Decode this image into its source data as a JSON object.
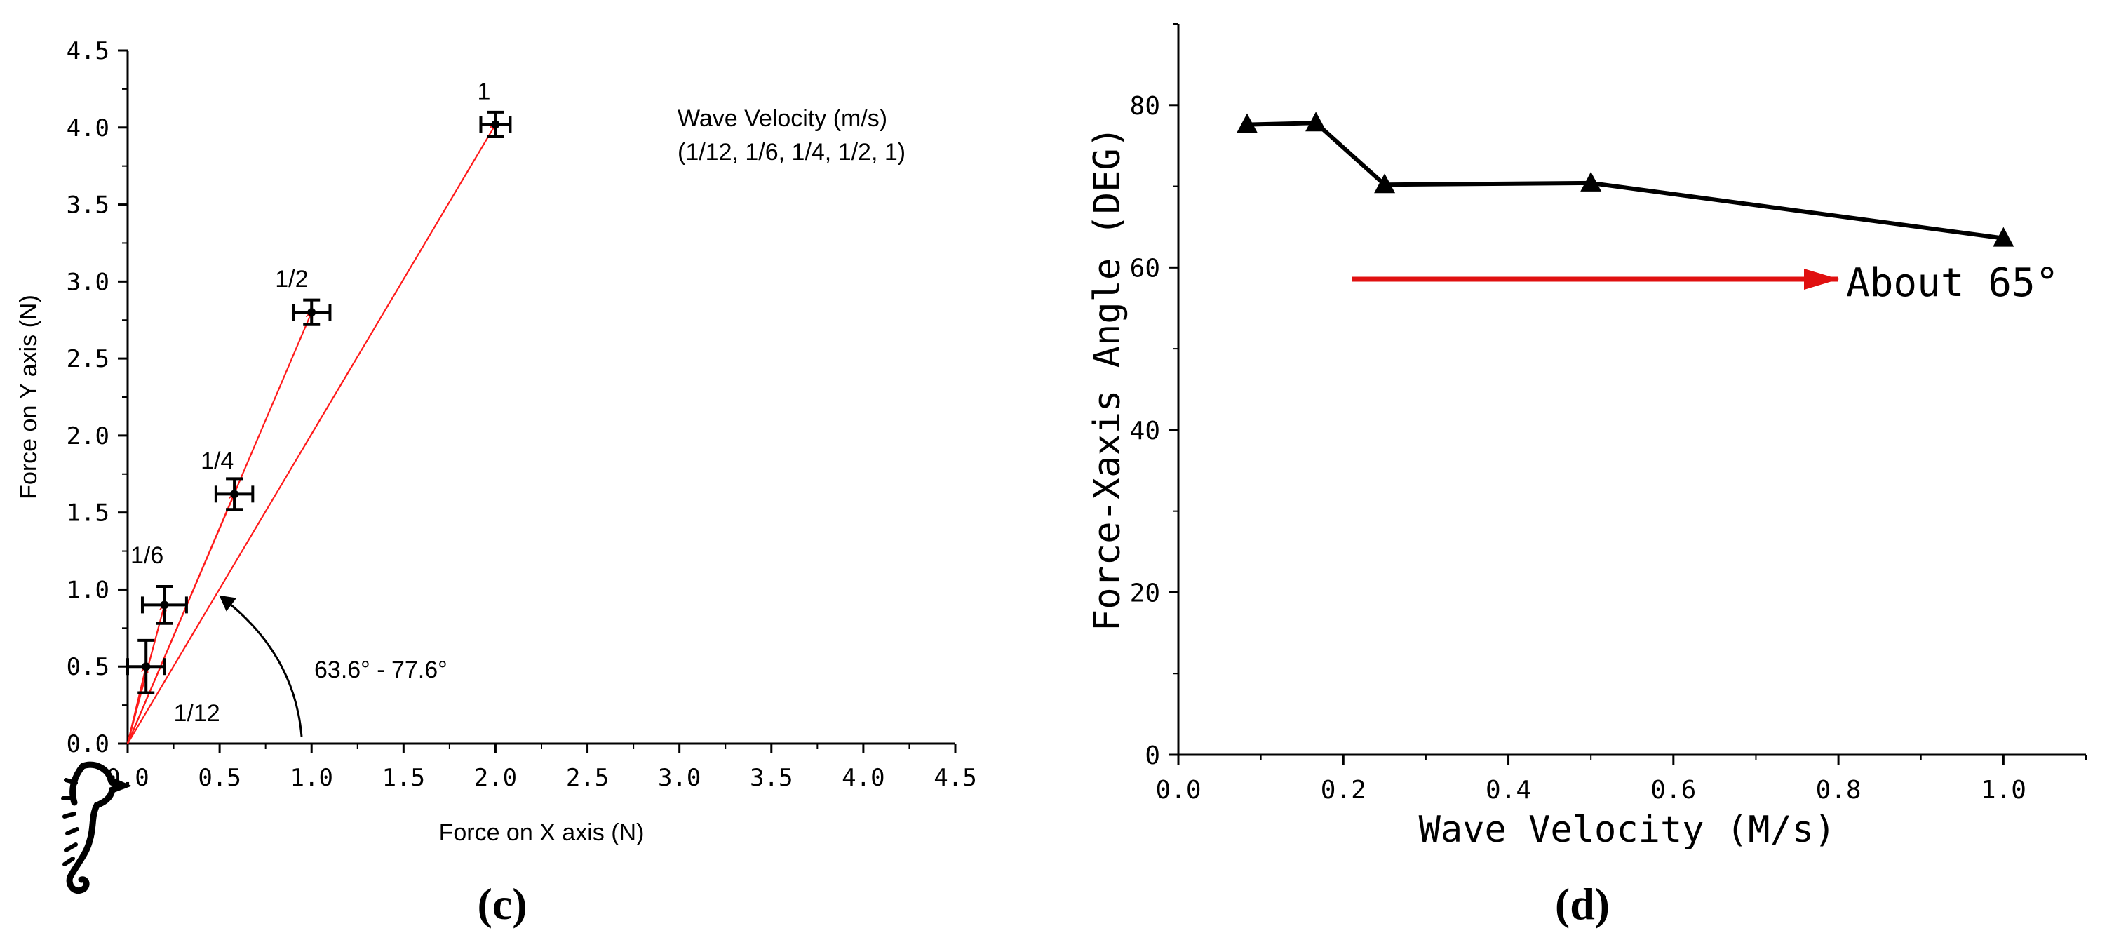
{
  "colors": {
    "vector": "#ff1a1a",
    "arrow": "#e01010",
    "ink": "#000000"
  },
  "chart_data": [
    {
      "panel_label": "(c)",
      "type": "scatter",
      "title": "",
      "xlabel": "Force on X axis (N)",
      "ylabel": "Force on Y axis (N)",
      "xlim": [
        0,
        4.5
      ],
      "ylim": [
        0,
        4.5
      ],
      "xticks": [
        "0.0",
        "0.5",
        "1.0",
        "1.5",
        "2.0",
        "2.5",
        "3.0",
        "3.5",
        "4.0",
        "4.5"
      ],
      "yticks": [
        "0.0",
        "0.5",
        "1.0",
        "1.5",
        "2.0",
        "2.5",
        "3.0",
        "3.5",
        "4.0",
        "4.5"
      ],
      "legend_title": "Wave Velocity (m/s)",
      "legend_values": "(1/12, 1/6, 1/4, 1/2, 1)",
      "angle_annotation": "63.6° - 77.6°",
      "points": [
        {
          "label": "1/12",
          "x": 0.1,
          "y": 0.5,
          "xerr": 0.1,
          "yerr": 0.17
        },
        {
          "label": "1/6",
          "x": 0.2,
          "y": 0.9,
          "xerr": 0.12,
          "yerr": 0.12
        },
        {
          "label": "1/4",
          "x": 0.58,
          "y": 1.62,
          "xerr": 0.1,
          "yerr": 0.1
        },
        {
          "label": "1/2",
          "x": 1.0,
          "y": 2.8,
          "xerr": 0.1,
          "yerr": 0.08
        },
        {
          "label": "1",
          "x": 2.0,
          "y": 4.02,
          "xerr": 0.08,
          "yerr": 0.08
        }
      ]
    },
    {
      "panel_label": "(d)",
      "type": "line",
      "title": "",
      "xlabel": "Wave Velocity (M/s)",
      "ylabel": "Force-Xaxis Angle (DEG)",
      "xlim": [
        0,
        1.1
      ],
      "ylim": [
        0,
        90
      ],
      "xticks": [
        "0.0",
        "0.2",
        "0.4",
        "0.6",
        "0.8",
        "1.0"
      ],
      "yticks": [
        "0",
        "20",
        "40",
        "60",
        "80"
      ],
      "series": [
        {
          "name": "angle",
          "x": [
            0.0833,
            0.1667,
            0.25,
            0.5,
            1.0
          ],
          "y": [
            77.6,
            77.8,
            70.2,
            70.4,
            63.6
          ]
        }
      ],
      "annotation": "About 65°"
    }
  ]
}
